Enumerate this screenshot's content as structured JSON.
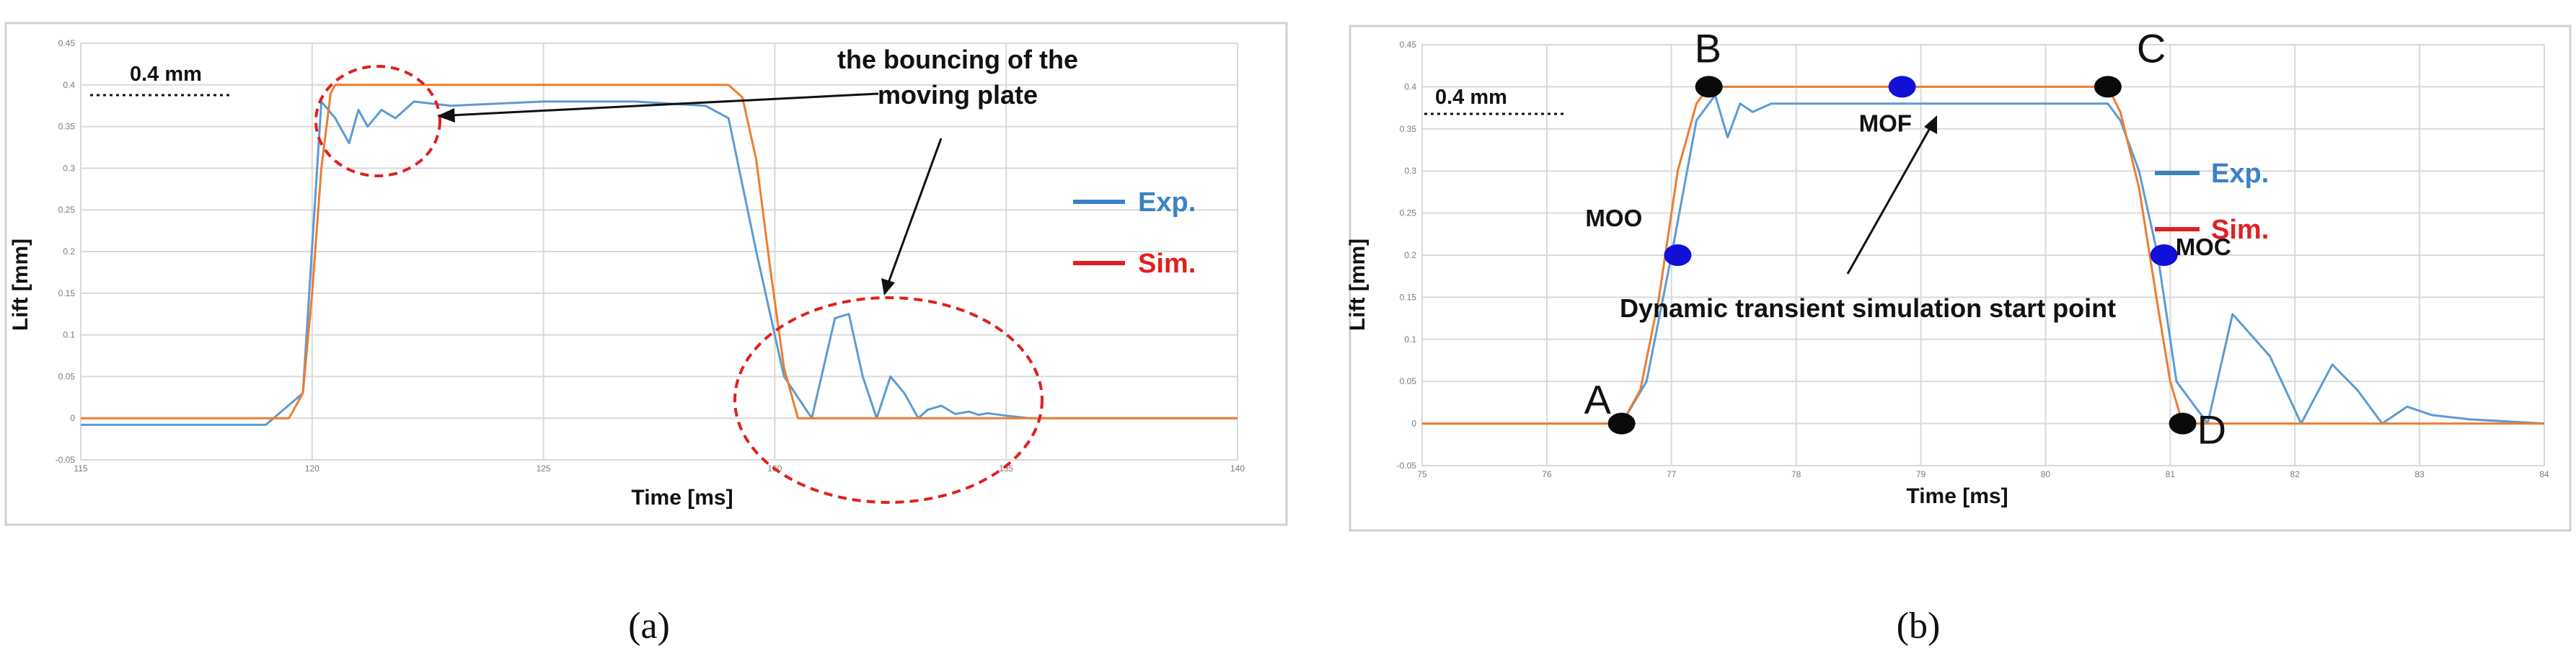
{
  "chart_data": [
    {
      "id": "a",
      "type": "line",
      "caption": "(a)",
      "xlabel": "Time [ms]",
      "ylabel": "Lift [mm]",
      "xlim": [
        115,
        140
      ],
      "ylim": [
        -0.05,
        0.45
      ],
      "x_ticks": [
        "115",
        "120",
        "125",
        "130",
        "135",
        "140"
      ],
      "y_ticks": [
        "-0.05",
        "0",
        "0.05",
        "0.1",
        "0.15",
        "0.2",
        "0.25",
        "0.3",
        "0.35",
        "0.4",
        "0.45"
      ],
      "reference_label": "0.4 mm",
      "legend": [
        {
          "label": "Exp.",
          "color": "#3b82c4"
        },
        {
          "label": "Sim.",
          "color": "#e21f1f"
        }
      ],
      "annotations": {
        "bounce_line1": "the bouncing of the",
        "bounce_line2": "moving plate"
      },
      "series": [
        {
          "name": "Exp.",
          "color": "#5b9bd5",
          "x": [
            115,
            119,
            119.8,
            120.2,
            120.5,
            120.8,
            121.0,
            121.2,
            121.5,
            121.8,
            122.2,
            123,
            125,
            127,
            128.5,
            129,
            129.6,
            130.2,
            130.8,
            131.3,
            131.6,
            131.9,
            132.2,
            132.5,
            132.8,
            133.1,
            133.3,
            133.6,
            133.9,
            134.2,
            134.4,
            134.6,
            135.0,
            135.5,
            140
          ],
          "y": [
            -0.008,
            -0.008,
            0.03,
            0.38,
            0.36,
            0.33,
            0.37,
            0.35,
            0.37,
            0.36,
            0.38,
            0.375,
            0.38,
            0.38,
            0.375,
            0.36,
            0.2,
            0.05,
            0.0,
            0.12,
            0.125,
            0.05,
            0.0,
            0.05,
            0.03,
            0.0,
            0.01,
            0.015,
            0.005,
            0.008,
            0.004,
            0.006,
            0.003,
            0.0,
            0.0
          ]
        },
        {
          "name": "Sim.",
          "color": "#ed7d31",
          "x": [
            115,
            119.5,
            119.8,
            120.0,
            120.2,
            120.4,
            120.5,
            129.0,
            129.3,
            129.6,
            129.9,
            130.2,
            130.5,
            140
          ],
          "y": [
            0,
            0,
            0.03,
            0.15,
            0.3,
            0.39,
            0.4,
            0.4,
            0.385,
            0.31,
            0.18,
            0.06,
            0,
            0
          ]
        }
      ]
    },
    {
      "id": "b",
      "type": "line",
      "caption": "(b)",
      "xlabel": "Time [ms]",
      "ylabel": "Lift [mm]",
      "xlim": [
        75,
        84
      ],
      "ylim": [
        -0.05,
        0.45
      ],
      "x_ticks": [
        "75",
        "76",
        "77",
        "78",
        "79",
        "80",
        "81",
        "82",
        "83",
        "84"
      ],
      "y_ticks": [
        "-0.05",
        "0",
        "0.05",
        "0.1",
        "0.15",
        "0.2",
        "0.25",
        "0.3",
        "0.35",
        "0.4",
        "0.45"
      ],
      "reference_label": "0.4 mm",
      "legend": [
        {
          "label": "Exp.",
          "color": "#3b82c4"
        },
        {
          "label": "Sim.",
          "color": "#e21f1f"
        }
      ],
      "annotations": {
        "start_point": "Dynamic transient simulation start point"
      },
      "points": [
        {
          "label": "A",
          "x": 76.6,
          "y": 0.0,
          "color": "#0a0a0a"
        },
        {
          "label": "B",
          "x": 77.3,
          "y": 0.4,
          "color": "#0a0a0a"
        },
        {
          "label": "C",
          "x": 80.5,
          "y": 0.4,
          "color": "#0a0a0a"
        },
        {
          "label": "D",
          "x": 81.1,
          "y": 0.0,
          "color": "#0a0a0a"
        },
        {
          "label": "MOO",
          "x": 77.05,
          "y": 0.2,
          "color": "#1010d8"
        },
        {
          "label": "MOF",
          "x": 78.85,
          "y": 0.4,
          "color": "#1010d8"
        },
        {
          "label": "MOC",
          "x": 80.95,
          "y": 0.2,
          "color": "#1010d8"
        }
      ],
      "series": [
        {
          "name": "Exp.",
          "color": "#5b9bd5",
          "x": [
            75,
            76.6,
            76.8,
            77.0,
            77.2,
            77.35,
            77.45,
            77.55,
            77.65,
            77.8,
            78.2,
            79,
            80,
            80.5,
            80.6,
            80.75,
            80.9,
            81.05,
            81.3,
            81.5,
            81.8,
            82.05,
            82.3,
            82.5,
            82.7,
            82.9,
            83.1,
            83.4,
            84
          ],
          "y": [
            0.0,
            0.0,
            0.05,
            0.2,
            0.36,
            0.39,
            0.34,
            0.38,
            0.37,
            0.38,
            0.38,
            0.38,
            0.38,
            0.38,
            0.36,
            0.3,
            0.2,
            0.05,
            0.0,
            0.13,
            0.08,
            0.0,
            0.07,
            0.04,
            0.0,
            0.02,
            0.01,
            0.005,
            0.0
          ]
        },
        {
          "name": "Sim.",
          "color": "#ed7d31",
          "x": [
            75,
            76.6,
            76.75,
            76.9,
            77.05,
            77.2,
            77.3,
            80.5,
            80.6,
            80.75,
            80.9,
            81.0,
            81.1,
            84
          ],
          "y": [
            0,
            0,
            0.04,
            0.15,
            0.3,
            0.38,
            0.4,
            0.4,
            0.37,
            0.28,
            0.14,
            0.05,
            0,
            0
          ]
        }
      ]
    }
  ]
}
